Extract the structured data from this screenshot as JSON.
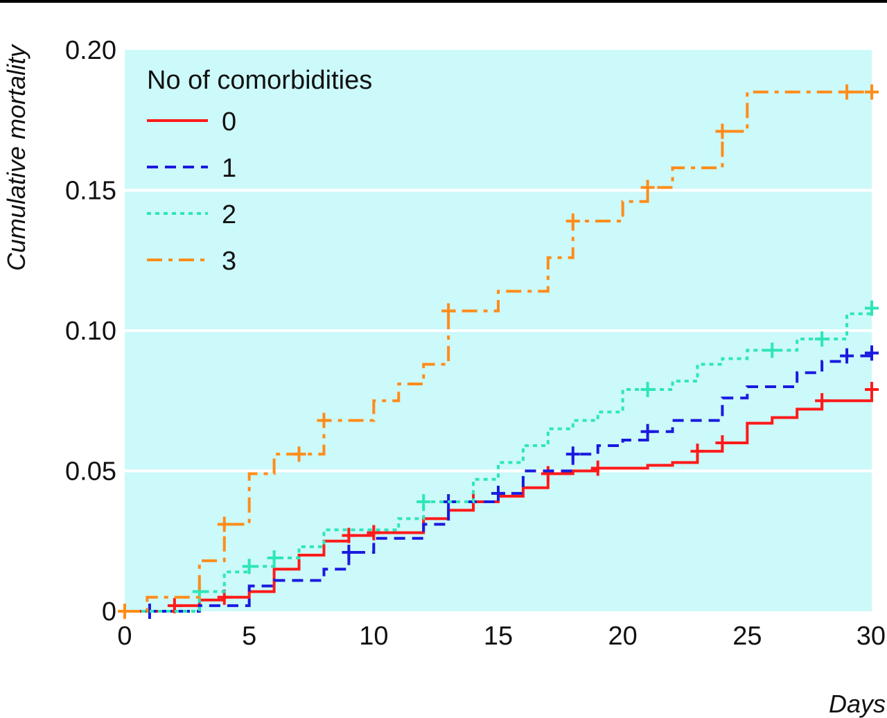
{
  "chart_data": {
    "type": "line",
    "step": true,
    "xlabel": "Days",
    "ylabel": "Cumulative mortality",
    "xlim": [
      0,
      30
    ],
    "ylim": [
      0,
      0.2
    ],
    "x_ticks": [
      0,
      5,
      10,
      15,
      20,
      25,
      30
    ],
    "x_tick_labels": [
      "0",
      "5",
      "10",
      "15",
      "20",
      "25",
      "30"
    ],
    "y_ticks": [
      0,
      0.05,
      0.1,
      0.15,
      0.2
    ],
    "y_tick_labels": [
      "0",
      "0.05",
      "0.10",
      "0.15",
      "0.20"
    ],
    "grid": "horizontal",
    "background_color": "#ccf9f9",
    "legend": {
      "title": "No of comorbidities",
      "placement": "top-left"
    },
    "series": [
      {
        "name": "0",
        "color": "#ff1a1a",
        "dash": "solid",
        "steps": [
          [
            0,
            0
          ],
          [
            2,
            0.002
          ],
          [
            3,
            0.004
          ],
          [
            4,
            0.005
          ],
          [
            5,
            0.007
          ],
          [
            6,
            0.015
          ],
          [
            7,
            0.02
          ],
          [
            8,
            0.025
          ],
          [
            9,
            0.027
          ],
          [
            10,
            0.028
          ],
          [
            12,
            0.033
          ],
          [
            13,
            0.036
          ],
          [
            14,
            0.039
          ],
          [
            15,
            0.041
          ],
          [
            16,
            0.044
          ],
          [
            17,
            0.049
          ],
          [
            18,
            0.05
          ],
          [
            19,
            0.051
          ],
          [
            21,
            0.052
          ],
          [
            22,
            0.053
          ],
          [
            23,
            0.057
          ],
          [
            24,
            0.06
          ],
          [
            25,
            0.067
          ],
          [
            26,
            0.069
          ],
          [
            27,
            0.072
          ],
          [
            28,
            0.075
          ],
          [
            30,
            0.079
          ]
        ],
        "censored": [
          [
            2,
            0.002
          ],
          [
            4,
            0.005
          ],
          [
            9,
            0.027
          ],
          [
            10,
            0.028
          ],
          [
            14,
            0.039
          ],
          [
            17,
            0.049
          ],
          [
            19,
            0.051
          ],
          [
            23,
            0.057
          ],
          [
            24,
            0.06
          ],
          [
            28,
            0.075
          ],
          [
            30,
            0.079
          ]
        ]
      },
      {
        "name": "1",
        "color": "#1a1adf",
        "dash": "dashed",
        "steps": [
          [
            0,
            0
          ],
          [
            3,
            0.002
          ],
          [
            5,
            0.009
          ],
          [
            6,
            0.011
          ],
          [
            8,
            0.015
          ],
          [
            9,
            0.021
          ],
          [
            10,
            0.026
          ],
          [
            12,
            0.031
          ],
          [
            13,
            0.039
          ],
          [
            15,
            0.042
          ],
          [
            16,
            0.05
          ],
          [
            18,
            0.056
          ],
          [
            19,
            0.059
          ],
          [
            20,
            0.061
          ],
          [
            21,
            0.064
          ],
          [
            22,
            0.068
          ],
          [
            24,
            0.076
          ],
          [
            25,
            0.08
          ],
          [
            27,
            0.085
          ],
          [
            28,
            0.089
          ],
          [
            29,
            0.091
          ],
          [
            30,
            0.092
          ]
        ],
        "censored": [
          [
            1,
            0
          ],
          [
            9,
            0.021
          ],
          [
            13,
            0.039
          ],
          [
            15,
            0.042
          ],
          [
            18,
            0.056
          ],
          [
            21,
            0.064
          ],
          [
            29,
            0.091
          ],
          [
            30,
            0.092
          ]
        ]
      },
      {
        "name": "2",
        "color": "#2ee6b8",
        "dash": "dotted",
        "steps": [
          [
            0,
            0
          ],
          [
            3,
            0.007
          ],
          [
            4,
            0.014
          ],
          [
            5,
            0.016
          ],
          [
            6,
            0.019
          ],
          [
            7,
            0.023
          ],
          [
            8,
            0.029
          ],
          [
            11,
            0.033
          ],
          [
            12,
            0.039
          ],
          [
            14,
            0.047
          ],
          [
            15,
            0.053
          ],
          [
            16,
            0.059
          ],
          [
            17,
            0.065
          ],
          [
            18,
            0.068
          ],
          [
            19,
            0.071
          ],
          [
            20,
            0.079
          ],
          [
            22,
            0.082
          ],
          [
            23,
            0.088
          ],
          [
            24,
            0.09
          ],
          [
            25,
            0.093
          ],
          [
            27,
            0.097
          ],
          [
            29,
            0.106
          ],
          [
            30,
            0.108
          ]
        ],
        "censored": [
          [
            3,
            0.007
          ],
          [
            5,
            0.016
          ],
          [
            6,
            0.019
          ],
          [
            12,
            0.039
          ],
          [
            21,
            0.079
          ],
          [
            26,
            0.093
          ],
          [
            28,
            0.097
          ],
          [
            30,
            0.108
          ]
        ]
      },
      {
        "name": "3",
        "color": "#ff8c1a",
        "dash": "dash-dot",
        "steps": [
          [
            0,
            0
          ],
          [
            0.9,
            0.005
          ],
          [
            3,
            0.018
          ],
          [
            4,
            0.031
          ],
          [
            5,
            0.049
          ],
          [
            6,
            0.056
          ],
          [
            8,
            0.068
          ],
          [
            10,
            0.075
          ],
          [
            11,
            0.081
          ],
          [
            12,
            0.088
          ],
          [
            13,
            0.107
          ],
          [
            15,
            0.114
          ],
          [
            17,
            0.126
          ],
          [
            18,
            0.139
          ],
          [
            20,
            0.146
          ],
          [
            21,
            0.151
          ],
          [
            22,
            0.158
          ],
          [
            24,
            0.171
          ],
          [
            25,
            0.185
          ],
          [
            30,
            0.185
          ]
        ],
        "censored": [
          [
            0,
            0
          ],
          [
            4,
            0.031
          ],
          [
            7,
            0.056
          ],
          [
            8,
            0.068
          ],
          [
            13,
            0.107
          ],
          [
            18,
            0.139
          ],
          [
            21,
            0.151
          ],
          [
            24,
            0.171
          ],
          [
            29,
            0.185
          ],
          [
            30,
            0.185
          ]
        ]
      }
    ]
  }
}
